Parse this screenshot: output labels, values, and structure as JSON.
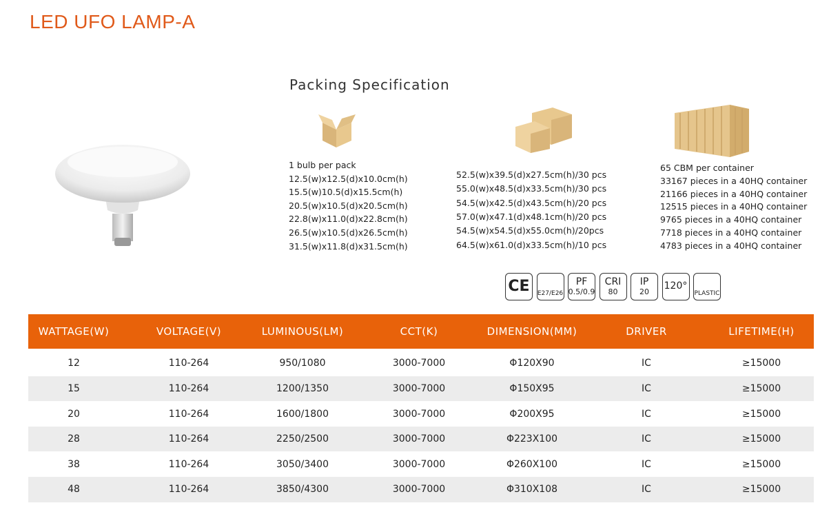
{
  "title": "LED UFO LAMP-A",
  "packing": {
    "heading": "Packing Specification",
    "columns": [
      {
        "lines": [
          "1 bulb per pack",
          "12.5(w)x12.5(d)x10.0cm(h)",
          "15.5(w)10.5(d)x15.5cm(h)",
          "20.5(w)x10.5(d)x20.5cm(h)",
          "22.8(w)x11.0(d)x22.8cm(h)",
          "26.5(w)x10.5(d)x26.5cm(h)",
          "31.5(w)x11.8(d)x31.5cm(h)"
        ]
      },
      {
        "lines": [
          "52.5(w)x39.5(d)x27.5cm(h)/30 pcs",
          "55.0(w)x48.5(d)x33.5cm(h)/30 pcs",
          "54.5(w)x42.5(d)x43.5cm(h)/20 pcs",
          "57.0(w)x47.1(d)x48.1cm(h)/20 pcs",
          "54.5(w)x54.5(d)x55.0cm(h)/20pcs",
          "64.5(w)x61.0(d)x33.5cm(h)/10 pcs"
        ]
      },
      {
        "lines": [
          "65 CBM per container",
          "33167 pieces in a 40HQ container",
          "21166 pieces in a 40HQ container",
          "12515 pieces in a 40HQ container",
          "9765 pieces in a 40HQ container",
          "7718 pieces in a 40HQ container",
          "4783 pieces in a 40HQ container"
        ]
      }
    ]
  },
  "icons": [
    {
      "label": "CE"
    },
    {
      "label": "E27/E26"
    },
    {
      "label": "PF",
      "value": "0.5/0.9"
    },
    {
      "label": "CRI",
      "value": "80"
    },
    {
      "label": "IP",
      "value": "20"
    },
    {
      "label": "120°"
    },
    {
      "label": "PLASTIC"
    }
  ],
  "table": {
    "header": [
      "WATTAGE(W)",
      "VOLTAGE(V)",
      "LUMINOUS(LM)",
      "CCT(K)",
      "DIMENSION(MM)",
      "DRIVER",
      "LIFETIME(H)"
    ],
    "rows": [
      [
        "12",
        "110-264",
        "950/1080",
        "3000-7000",
        "Φ120X90",
        "IC",
        "≥15000"
      ],
      [
        "15",
        "110-264",
        "1200/1350",
        "3000-7000",
        "Φ150X95",
        "IC",
        "≥15000"
      ],
      [
        "20",
        "110-264",
        "1600/1800",
        "3000-7000",
        "Φ200X95",
        "IC",
        "≥15000"
      ],
      [
        "28",
        "110-264",
        "2250/2500",
        "3000-7000",
        "Φ223X100",
        "IC",
        "≥15000"
      ],
      [
        "38",
        "110-264",
        "3050/3400",
        "3000-7000",
        "Φ260X100",
        "IC",
        "≥15000"
      ],
      [
        "48",
        "110-264",
        "3850/4300",
        "3000-7000",
        "Φ310X108",
        "IC",
        "≥15000"
      ]
    ]
  }
}
